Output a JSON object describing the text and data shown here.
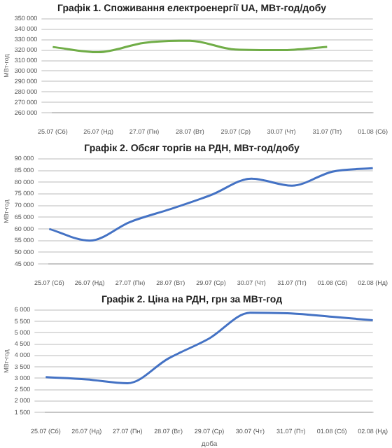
{
  "chart_data": [
    {
      "type": "line",
      "title": "Графік 1. Споживання електроенергії UA, МВт-год/добу",
      "ylabel": "МВт-год",
      "categories": [
        "25.07 (Сб)",
        "26.07 (Нд)",
        "27.07 (Пн)",
        "28.07 (Вт)",
        "29.07 (Ср)",
        "30.07 (Чт)",
        "31.07 (Пт)",
        "01.08 (Сб)"
      ],
      "series": [
        {
          "color": "#70ad47",
          "values": [
            323000,
            318000,
            327000,
            329000,
            320500,
            320000,
            323000,
            null
          ]
        }
      ],
      "ylim": [
        260000,
        350000
      ],
      "yticks": [
        {
          "value": 260000,
          "label": "260 000"
        },
        {
          "value": 270000,
          "label": "270 000"
        },
        {
          "value": 280000,
          "label": "280 000"
        },
        {
          "value": 290000,
          "label": "290 000"
        },
        {
          "value": 300000,
          "label": "300 000"
        },
        {
          "value": 310000,
          "label": "310 000"
        },
        {
          "value": 320000,
          "label": "320 000"
        },
        {
          "value": 330000,
          "label": "330 000"
        },
        {
          "value": 340000,
          "label": "340 000"
        },
        {
          "value": 350000,
          "label": "350 000"
        }
      ],
      "grid": "y",
      "legend": false,
      "marker": "none"
    },
    {
      "type": "line",
      "title": "Графік 2. Обсяг торгів на РДН, МВт-год/добу",
      "ylabel": "МВт-год",
      "categories": [
        "25.07 (Сб)",
        "26.07 (Нд)",
        "27.07 (Пн)",
        "28.07 (Вт)",
        "29.07 (Ср)",
        "30.07 (Чт)",
        "31.07 (Пт)",
        "01.08 (Сб)",
        "02.08 (Нд)"
      ],
      "series": [
        {
          "color": "#4472c4",
          "values": [
            60000,
            55000,
            63000,
            68500,
            74500,
            81500,
            78500,
            84500,
            86000
          ]
        }
      ],
      "ylim": [
        45000,
        90000
      ],
      "yticks": [
        {
          "value": 45000,
          "label": "45 000"
        },
        {
          "value": 50000,
          "label": "50 000"
        },
        {
          "value": 55000,
          "label": "55 000"
        },
        {
          "value": 60000,
          "label": "60 000"
        },
        {
          "value": 65000,
          "label": "65 000"
        },
        {
          "value": 70000,
          "label": "70 000"
        },
        {
          "value": 75000,
          "label": "75 000"
        },
        {
          "value": 80000,
          "label": "80 000"
        },
        {
          "value": 85000,
          "label": "85 000"
        },
        {
          "value": 90000,
          "label": "90 000"
        }
      ],
      "grid": "y",
      "legend": false,
      "marker": "none"
    },
    {
      "type": "line",
      "title": "Графік 2. Ціна на РДН, грн за МВт-год",
      "xlabel": "доба",
      "ylabel": "МВт-год",
      "categories": [
        "25.07 (Сб)",
        "26.07 (Нд)",
        "27.07 (Пн)",
        "28.07 (Вт)",
        "29.07 (Ср)",
        "30.07 (Чт)",
        "31.07 (Пт)",
        "01.08 (Сб)",
        "02.08 (Нд)"
      ],
      "series": [
        {
          "color": "#4472c4",
          "values": [
            3050,
            2950,
            2780,
            3870,
            4750,
            5880,
            5850,
            5700,
            5550
          ]
        }
      ],
      "ylim": [
        1500,
        6000
      ],
      "yticks": [
        {
          "value": 1500,
          "label": "1 500"
        },
        {
          "value": 2000,
          "label": "2 000"
        },
        {
          "value": 2500,
          "label": "2 500"
        },
        {
          "value": 3000,
          "label": "3 000"
        },
        {
          "value": 3500,
          "label": "3 500"
        },
        {
          "value": 4000,
          "label": "4 000"
        },
        {
          "value": 4500,
          "label": "4 500"
        },
        {
          "value": 5000,
          "label": "5 000"
        },
        {
          "value": 5500,
          "label": "5 500"
        },
        {
          "value": 6000,
          "label": "6 000"
        }
      ],
      "grid": "y",
      "legend": false,
      "marker": "none"
    }
  ]
}
